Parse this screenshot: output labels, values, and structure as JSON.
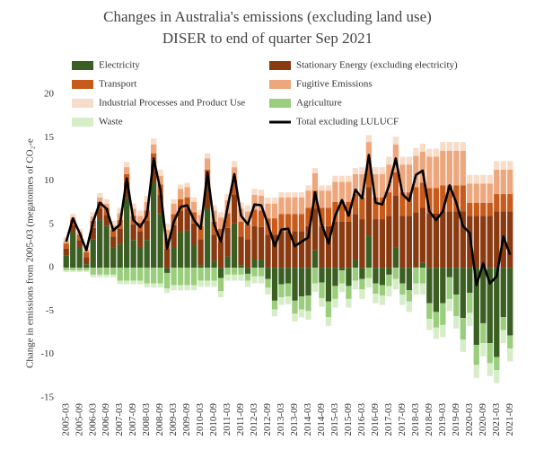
{
  "chart_data": {
    "type": "bar",
    "stacked": true,
    "title": "Changes in Australia's emissions (excluding land use)",
    "subtitle": "DISER to end of quarter Sep 2021",
    "y_label": "Change in emissions from 2005-03 (megatonnes of CO₂-e",
    "ylim": [
      -15,
      20
    ],
    "yticks": [
      -15,
      -10,
      -5,
      0,
      5,
      10,
      15,
      20
    ],
    "categories": [
      "2005-03",
      null,
      "2005-09",
      null,
      "2006-03",
      null,
      "2006-09",
      null,
      "2007-03",
      null,
      "2007-09",
      null,
      "2008-03",
      null,
      "2008-09",
      null,
      "2009-03",
      null,
      "2009-09",
      null,
      "2010-03",
      null,
      "2010-09",
      null,
      "2011-03",
      null,
      "2011-09",
      null,
      "2012-03",
      null,
      "2012-09",
      null,
      "2013-03",
      null,
      "2013-09",
      null,
      "2014-03",
      null,
      "2014-09",
      null,
      "2015-03",
      null,
      "2015-09",
      null,
      "2016-03",
      null,
      "2016-09",
      null,
      "2017-03",
      null,
      "2017-09",
      null,
      "2018-03",
      null,
      "2018-09",
      null,
      "2019-03",
      null,
      "2019-09",
      null,
      "2020-03",
      null,
      "2020-09",
      null,
      "2021-03",
      null,
      "2021-09"
    ],
    "series": [
      {
        "name": "Electricity",
        "color": "#3b5e23",
        "values": [
          1.4,
          4.1,
          2.4,
          0.4,
          3.3,
          5.5,
          4.8,
          2.3,
          2.7,
          8.0,
          3.2,
          2.4,
          3.2,
          9.8,
          6.2,
          -0.6,
          2.4,
          4.1,
          4.3,
          2.6,
          0.3,
          6.8,
          0.8,
          -1.2,
          1.3,
          5.1,
          0.3,
          -0.7,
          1.0,
          0.9,
          -1.3,
          -3.8,
          -1.9,
          -1.8,
          -3.8,
          -3.3,
          -3.2,
          2.0,
          -1.7,
          -3.9,
          -2.1,
          -0.3,
          -2.1,
          0.9,
          -1.3,
          3.7,
          -1.8,
          -2.0,
          -0.8,
          2.3,
          -1.8,
          -2.6,
          0.1,
          0.6,
          -4.1,
          -5.1,
          -4.1,
          -1.1,
          -3.1,
          -5.8,
          -2.9,
          -8.9,
          -6.4,
          -8.7,
          -10.3,
          -5.7,
          -7.8
        ]
      },
      {
        "name": "Stationary Energy (excluding electricity)",
        "color": "#8a3a10",
        "values": [
          0.8,
          0.8,
          0.8,
          0.8,
          1.3,
          1.3,
          1.3,
          1.3,
          1.8,
          1.8,
          1.8,
          1.8,
          2.2,
          2.2,
          2.2,
          2.2,
          2.5,
          2.5,
          2.5,
          2.5,
          3.0,
          3.0,
          3.0,
          3.0,
          3.3,
          3.3,
          3.3,
          3.3,
          3.8,
          3.8,
          3.8,
          3.8,
          4.2,
          4.2,
          4.2,
          4.2,
          4.8,
          4.8,
          4.8,
          4.8,
          5.3,
          5.3,
          5.3,
          5.3,
          5.6,
          5.6,
          5.6,
          5.6,
          6.0,
          6.0,
          6.0,
          6.0,
          6.3,
          6.3,
          6.3,
          6.3,
          6.5,
          6.5,
          6.5,
          6.5,
          6.0,
          6.0,
          6.0,
          6.0,
          6.5,
          6.5,
          6.5
        ]
      },
      {
        "name": "Transport",
        "color": "#c85a1c",
        "values": [
          0.6,
          0.6,
          0.6,
          0.6,
          0.8,
          0.8,
          0.8,
          0.8,
          1.0,
          1.0,
          1.0,
          1.0,
          1.2,
          1.2,
          1.2,
          1.2,
          1.3,
          1.3,
          1.3,
          1.3,
          1.5,
          1.5,
          1.5,
          1.5,
          1.7,
          1.7,
          1.7,
          1.7,
          1.9,
          1.9,
          1.9,
          1.9,
          2.0,
          2.0,
          2.0,
          2.0,
          2.1,
          2.1,
          2.1,
          2.1,
          2.3,
          2.3,
          2.3,
          2.3,
          2.5,
          2.5,
          2.5,
          2.5,
          2.7,
          2.7,
          2.7,
          2.7,
          2.9,
          2.9,
          2.9,
          2.9,
          3.0,
          3.0,
          3.0,
          3.0,
          1.5,
          1.5,
          1.5,
          1.5,
          2.0,
          2.0,
          2.0
        ]
      },
      {
        "name": "Fugitive Emissions",
        "color": "#eea77c",
        "values": [
          0.3,
          0.3,
          0.3,
          0.3,
          0.5,
          0.5,
          0.5,
          0.5,
          0.8,
          0.8,
          0.8,
          0.8,
          1.0,
          1.0,
          1.0,
          1.0,
          1.2,
          1.2,
          1.2,
          1.2,
          1.3,
          1.3,
          1.3,
          1.3,
          1.5,
          1.5,
          1.5,
          1.5,
          1.7,
          1.7,
          1.7,
          1.7,
          1.9,
          1.9,
          1.9,
          1.9,
          2.0,
          2.0,
          2.0,
          2.0,
          2.3,
          2.3,
          2.3,
          2.3,
          2.7,
          2.7,
          2.7,
          2.7,
          3.2,
          3.2,
          3.2,
          3.2,
          3.6,
          3.6,
          3.6,
          3.6,
          4.0,
          4.0,
          4.0,
          4.0,
          2.2,
          2.2,
          2.2,
          2.2,
          2.8,
          2.8,
          2.8
        ]
      },
      {
        "name": "Industrial Processes and Product Use",
        "color": "#f8dcca",
        "values": [
          0.4,
          0.4,
          0.4,
          0.4,
          0.5,
          0.5,
          0.5,
          0.5,
          0.6,
          0.6,
          0.6,
          0.6,
          0.7,
          0.7,
          0.7,
          0.7,
          0.5,
          0.5,
          0.5,
          0.5,
          0.6,
          0.6,
          0.6,
          0.6,
          0.7,
          0.7,
          0.7,
          0.7,
          0.7,
          0.7,
          0.7,
          0.7,
          0.6,
          0.6,
          0.6,
          0.6,
          0.6,
          0.6,
          0.6,
          0.6,
          0.7,
          0.7,
          0.7,
          0.7,
          0.8,
          0.8,
          0.8,
          0.8,
          0.9,
          0.9,
          0.9,
          0.9,
          0.9,
          0.9,
          0.9,
          0.9,
          1.0,
          1.0,
          1.0,
          1.0,
          1.0,
          1.0,
          1.0,
          1.0,
          1.0,
          1.0,
          1.0
        ]
      },
      {
        "name": "Agriculture",
        "color": "#9acd7c",
        "values": [
          -0.3,
          -0.3,
          -0.3,
          -0.3,
          -0.8,
          -0.8,
          -0.8,
          -0.8,
          -1.5,
          -1.5,
          -1.5,
          -1.5,
          -1.8,
          -1.8,
          -1.8,
          -1.8,
          -2.0,
          -2.0,
          -2.0,
          -2.0,
          -1.5,
          -1.5,
          -1.5,
          -1.5,
          -0.8,
          -0.8,
          -0.8,
          -0.8,
          -1.0,
          -1.0,
          -1.0,
          -1.0,
          -1.5,
          -1.5,
          -1.5,
          -1.5,
          -1.8,
          -1.8,
          -1.8,
          -1.8,
          -1.5,
          -1.5,
          -1.5,
          -1.5,
          -1.2,
          -1.2,
          -1.2,
          -1.2,
          -1.3,
          -1.3,
          -1.3,
          -1.3,
          -1.8,
          -1.8,
          -1.8,
          -1.8,
          -2.5,
          -2.5,
          -2.5,
          -2.5,
          -2.3,
          -2.3,
          -2.3,
          -2.3,
          -1.5,
          -1.5,
          -1.5
        ]
      },
      {
        "name": "Waste",
        "color": "#d6edc8",
        "values": [
          -0.2,
          -0.2,
          -0.2,
          -0.2,
          -0.3,
          -0.3,
          -0.3,
          -0.3,
          -0.4,
          -0.4,
          -0.4,
          -0.4,
          -0.5,
          -0.5,
          -0.5,
          -0.5,
          -0.6,
          -0.6,
          -0.6,
          -0.6,
          -0.7,
          -0.7,
          -0.7,
          -0.7,
          -0.7,
          -0.7,
          -0.7,
          -0.7,
          -0.8,
          -0.8,
          -0.8,
          -0.8,
          -0.9,
          -0.9,
          -0.9,
          -0.9,
          -1.0,
          -1.0,
          -1.0,
          -1.0,
          -1.0,
          -1.0,
          -1.0,
          -1.0,
          -1.1,
          -1.1,
          -1.1,
          -1.1,
          -1.2,
          -1.2,
          -1.2,
          -1.2,
          -1.3,
          -1.3,
          -1.3,
          -1.3,
          -1.4,
          -1.4,
          -1.4,
          -1.4,
          -1.5,
          -1.5,
          -1.5,
          -1.5,
          -1.5,
          -1.5,
          -1.5
        ]
      }
    ],
    "total": {
      "name": "Total excluding LULUCF",
      "color": "#000000",
      "values": [
        3,
        5.7,
        4,
        2,
        5.3,
        7.5,
        6.8,
        4.3,
        5,
        10.3,
        5.5,
        4.7,
        6,
        12.6,
        9,
        2.2,
        5.3,
        7,
        7.2,
        5.5,
        4.5,
        11,
        5,
        3,
        7,
        10.8,
        6,
        5,
        7.3,
        7.2,
        5,
        2.5,
        4.4,
        4.5,
        2.5,
        3,
        3.5,
        8.7,
        5,
        2.8,
        6,
        7.8,
        6,
        9,
        8,
        13,
        7.5,
        7.3,
        9.5,
        12.6,
        8.5,
        7.7,
        10.7,
        11.2,
        6.5,
        5.5,
        6.5,
        9.5,
        7.5,
        4.8,
        4,
        -2,
        0.5,
        -1.8,
        -1,
        3.6,
        1.5
      ]
    }
  }
}
